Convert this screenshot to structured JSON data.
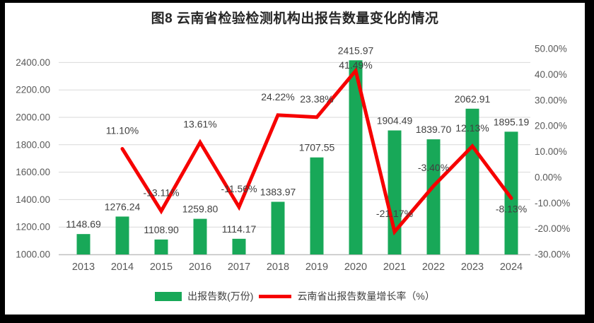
{
  "page": {
    "frame_color": "#000000",
    "canvas_color": "#FFFFFF"
  },
  "colors": {
    "bar": "#18A858",
    "line": "#F60000",
    "gridline": "#D9D9D9",
    "axis_line": "#BFBFBF",
    "tick_text": "#595959",
    "label_text": "#404040",
    "title_text": "#262626"
  },
  "chart_data": {
    "type": "combo-bar-line",
    "title": "图8 云南省检验检测机构出报告数量变化的情况",
    "categories": [
      "2013",
      "2014",
      "2015",
      "2016",
      "2017",
      "2018",
      "2019",
      "2020",
      "2021",
      "2022",
      "2023",
      "2024"
    ],
    "series": [
      {
        "name": "出报告数(万份)",
        "type": "bar",
        "axis": "left",
        "color": "#18A858",
        "values": [
          1148.69,
          1276.24,
          1108.9,
          1259.8,
          1114.17,
          1383.97,
          1707.55,
          2415.97,
          1904.49,
          1839.7,
          2062.91,
          1895.19
        ],
        "labels": [
          "1148.69",
          "1276.24",
          "1108.90",
          "1259.80",
          "1114.17",
          "1383.97",
          "1707.55",
          "2415.97",
          "1904.49",
          "1839.70",
          "2062.91",
          "1895.19"
        ]
      },
      {
        "name": "云南省出报告数量增长率（%）",
        "type": "line",
        "axis": "right",
        "color": "#F60000",
        "values": [
          null,
          11.1,
          -13.11,
          13.61,
          -11.56,
          24.22,
          23.38,
          41.49,
          -21.17,
          -3.4,
          12.13,
          -8.13
        ],
        "labels": [
          null,
          "11.10%",
          "-13.11%",
          "13.61%",
          "-11.56%",
          "24.22%",
          "23.38%",
          "41.49%",
          "-21.17%",
          "-3.40%",
          "12.13%",
          "-8.13%"
        ]
      }
    ],
    "left_axis": {
      "min": 1000,
      "max": 2500,
      "tick_values": [
        1000,
        1200,
        1400,
        1600,
        1800,
        2000,
        2200,
        2400
      ],
      "tick_labels": [
        "1000.00",
        "1200.00",
        "1400.00",
        "1600.00",
        "1800.00",
        "2000.00",
        "2200.00",
        "2400.00"
      ]
    },
    "right_axis": {
      "min": -30,
      "max": 50,
      "tick_values": [
        -30,
        -20,
        -10,
        0,
        10,
        20,
        30,
        40,
        50
      ],
      "tick_labels": [
        "-30.00%",
        "-20.00%",
        "-10.00%",
        "0.00%",
        "10.00%",
        "20.00%",
        "30.00%",
        "40.00%",
        "50.00%"
      ]
    },
    "grid": "horizontal, primary axis only",
    "legend_position": "bottom"
  }
}
